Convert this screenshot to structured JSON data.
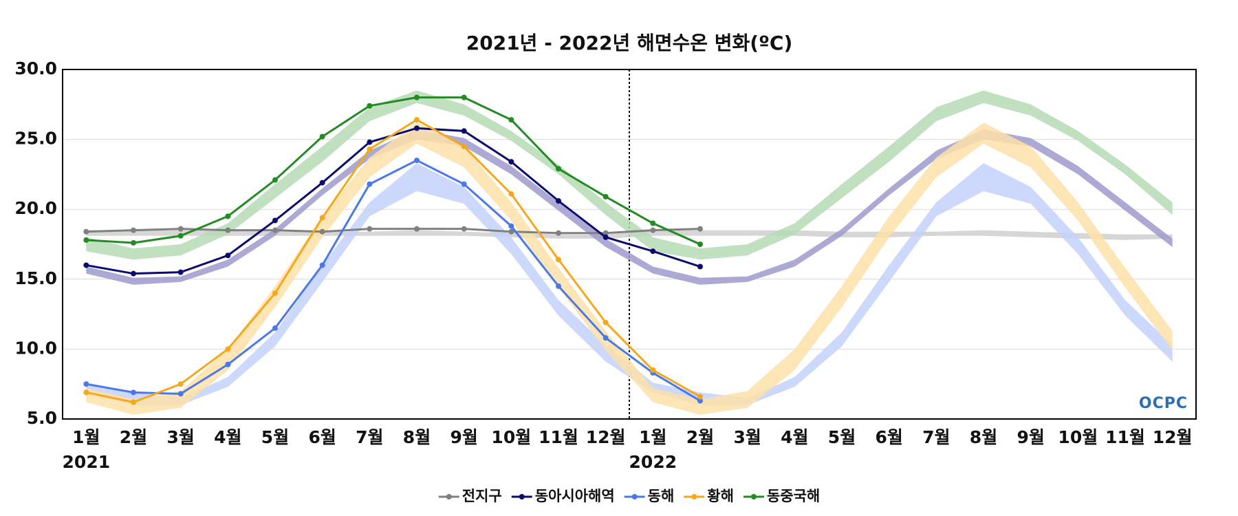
{
  "chart_data": {
    "type": "line",
    "title": "2021년 - 2022년 해면수온 변화(ºC)",
    "categories": [
      "1월",
      "2월",
      "3월",
      "4월",
      "5월",
      "6월",
      "7월",
      "8월",
      "9월",
      "10월",
      "11월",
      "12월",
      "1월",
      "2월",
      "3월",
      "4월",
      "5월",
      "6월",
      "7월",
      "8월",
      "9월",
      "10월",
      "11월",
      "12월"
    ],
    "year_labels": [
      "2021",
      null,
      null,
      null,
      null,
      null,
      null,
      null,
      null,
      null,
      null,
      null,
      "2022",
      null,
      null,
      null,
      null,
      null,
      null,
      null,
      null,
      null,
      null,
      null
    ],
    "ylim": [
      5,
      30
    ],
    "yticks": [
      {
        "value": 5,
        "label": "5.0"
      },
      {
        "value": 10,
        "label": "10.0"
      },
      {
        "value": 15,
        "label": "15.0"
      },
      {
        "value": 20,
        "label": "20.0"
      },
      {
        "value": 25,
        "label": "25.0"
      },
      {
        "value": 30,
        "label": "30.0"
      }
    ],
    "grid": true,
    "legend": "bottom",
    "logo": "OCPC",
    "bands": [
      {
        "color": "#cfcfcf",
        "lower": [
          18.1,
          18.1,
          18.1,
          18.1,
          18.1,
          18.1,
          18.1,
          18.1,
          18.1,
          18.0,
          17.9,
          17.9,
          18.1,
          18.1,
          18.1,
          18.1,
          18.0,
          18.0,
          18.1,
          18.1,
          18.0,
          17.9,
          17.8,
          17.9
        ],
        "upper": [
          18.5,
          18.5,
          18.5,
          18.5,
          18.4,
          18.4,
          18.4,
          18.5,
          18.4,
          18.3,
          18.2,
          18.2,
          18.5,
          18.5,
          18.5,
          18.5,
          18.4,
          18.4,
          18.4,
          18.5,
          18.4,
          18.3,
          18.2,
          18.2
        ]
      },
      {
        "color": "#9d9bcc",
        "lower": [
          15.4,
          14.6,
          14.8,
          15.9,
          18.1,
          21.0,
          23.6,
          25.0,
          24.5,
          22.5,
          19.9,
          17.3,
          15.4,
          14.6,
          14.8,
          15.9,
          18.1,
          21.0,
          23.6,
          25.0,
          24.5,
          22.5,
          19.9,
          17.3
        ],
        "upper": [
          15.9,
          15.1,
          15.2,
          16.4,
          18.6,
          21.5,
          24.2,
          25.7,
          25.1,
          23.1,
          20.5,
          17.9,
          15.9,
          15.1,
          15.2,
          16.4,
          18.6,
          21.5,
          24.2,
          25.7,
          25.1,
          23.1,
          20.5,
          17.9
        ]
      },
      {
        "color": "#c3d1fb",
        "lower": [
          6.9,
          6.0,
          6.0,
          7.3,
          10.2,
          14.8,
          19.5,
          21.3,
          20.4,
          16.8,
          12.4,
          9.1,
          6.9,
          6.0,
          6.0,
          7.3,
          10.2,
          14.8,
          19.5,
          21.3,
          20.4,
          16.8,
          12.4,
          9.1
        ],
        "upper": [
          7.6,
          6.9,
          6.5,
          8.0,
          11.2,
          16.0,
          20.5,
          23.3,
          21.6,
          18.0,
          13.5,
          10.3,
          7.6,
          6.9,
          6.5,
          8.0,
          11.2,
          16.0,
          20.5,
          23.3,
          21.6,
          18.0,
          13.5,
          10.3
        ]
      },
      {
        "color": "#fde0a8",
        "lower": [
          6.2,
          5.3,
          5.8,
          8.5,
          13.0,
          18.0,
          22.3,
          24.7,
          23.0,
          19.2,
          14.4,
          9.9,
          6.2,
          5.3,
          5.8,
          8.5,
          13.0,
          18.0,
          22.3,
          24.7,
          23.0,
          19.2,
          14.4,
          9.9
        ],
        "upper": [
          7.2,
          6.4,
          7.0,
          10.0,
          14.5,
          19.5,
          23.7,
          26.2,
          24.5,
          20.5,
          15.8,
          11.3,
          7.2,
          6.4,
          7.0,
          10.0,
          14.5,
          19.5,
          23.7,
          26.2,
          24.5,
          20.5,
          15.8,
          11.3
        ]
      },
      {
        "color": "#b5dbb5",
        "lower": [
          17.0,
          16.4,
          16.7,
          18.2,
          20.8,
          23.4,
          26.3,
          27.6,
          26.7,
          24.9,
          22.5,
          19.6,
          17.0,
          16.4,
          16.7,
          18.2,
          20.8,
          23.4,
          26.3,
          27.6,
          26.7,
          24.9,
          22.5,
          19.6
        ],
        "upper": [
          18.0,
          17.2,
          17.5,
          19.0,
          21.8,
          24.5,
          27.3,
          28.5,
          27.5,
          25.6,
          23.2,
          20.5,
          18.0,
          17.2,
          17.5,
          19.0,
          21.8,
          24.5,
          27.3,
          28.5,
          27.5,
          25.6,
          23.2,
          20.5
        ]
      }
    ],
    "series": [
      {
        "name": "전지구",
        "color": "#808080",
        "values": [
          18.4,
          18.5,
          18.6,
          18.5,
          18.5,
          18.4,
          18.6,
          18.6,
          18.6,
          18.4,
          18.3,
          18.3,
          18.5,
          18.6,
          null,
          null,
          null,
          null,
          null,
          null,
          null,
          null,
          null,
          null
        ]
      },
      {
        "name": "동아시아해역",
        "color": "#0b0b6e",
        "values": [
          16.0,
          15.4,
          15.5,
          16.7,
          19.2,
          21.9,
          24.8,
          25.8,
          25.6,
          23.4,
          20.6,
          18.0,
          17.0,
          15.9,
          null,
          null,
          null,
          null,
          null,
          null,
          null,
          null,
          null,
          null
        ]
      },
      {
        "name": "동해",
        "color": "#4a78e8",
        "values": [
          7.5,
          6.9,
          6.8,
          8.9,
          11.5,
          16.0,
          21.8,
          23.5,
          21.8,
          18.8,
          14.5,
          10.8,
          8.3,
          6.3,
          null,
          null,
          null,
          null,
          null,
          null,
          null,
          null,
          null,
          null
        ]
      },
      {
        "name": "황해",
        "color": "#f5a81a",
        "values": [
          6.9,
          6.2,
          7.5,
          10.0,
          14.0,
          19.4,
          24.3,
          26.4,
          24.5,
          21.1,
          16.4,
          11.9,
          8.5,
          6.6,
          null,
          null,
          null,
          null,
          null,
          null,
          null,
          null,
          null,
          null
        ]
      },
      {
        "name": "동중국해",
        "color": "#228b22",
        "values": [
          17.8,
          17.6,
          18.1,
          19.5,
          22.1,
          25.2,
          27.4,
          28.0,
          28.0,
          26.4,
          22.9,
          20.9,
          19.0,
          17.5,
          null,
          null,
          null,
          null,
          null,
          null,
          null,
          null,
          null,
          null
        ]
      }
    ]
  }
}
